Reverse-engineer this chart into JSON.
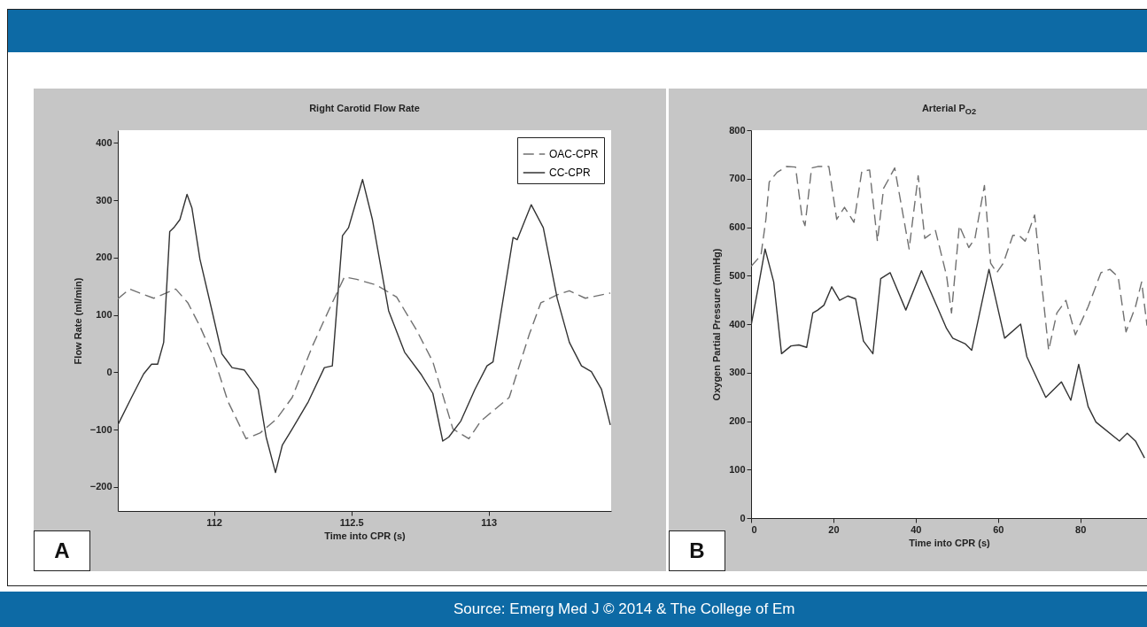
{
  "chart_data": [
    {
      "type": "line",
      "title": "Right Carotid Flow Rate",
      "xlabel": "Time into CPR (s)",
      "ylabel": "Flow Rate (ml/min)",
      "xlim": [
        111.65,
        113.446
      ],
      "ylim": [
        -242,
        422
      ],
      "xticks": [
        112,
        112.5,
        113
      ],
      "yticks": [
        -200,
        -100,
        0,
        100,
        200,
        300,
        400
      ],
      "legend": "top right",
      "grid": false,
      "annotations": [
        "A"
      ],
      "series": [
        {
          "name": "OAC-CPR",
          "color": "#707070",
          "line_style": "dashed",
          "x": [
            111.65,
            111.693,
            111.73,
            111.781,
            111.861,
            111.905,
            111.949,
            112.0,
            112.051,
            112.117,
            112.168,
            112.227,
            112.285,
            112.358,
            112.417,
            112.475,
            112.519,
            112.592,
            112.665,
            112.738,
            112.797,
            112.87,
            112.928,
            112.972,
            113.075,
            113.148,
            113.19,
            113.25,
            113.294,
            113.352,
            113.443
          ],
          "values": [
            128,
            145,
            138,
            129,
            145,
            121,
            80,
            25,
            -51,
            -116,
            -106,
            -82,
            -44,
            45,
            107,
            166,
            162,
            152,
            131,
            73,
            18,
            -99,
            -116,
            -85,
            -44,
            66,
            121,
            135,
            142,
            129,
            138
          ]
        },
        {
          "name": "CC-CPR",
          "color": "#333333",
          "line_style": "solid",
          "x": [
            111.65,
            111.7,
            111.744,
            111.773,
            111.795,
            111.817,
            111.839,
            111.854,
            111.876,
            111.902,
            111.92,
            111.949,
            111.993,
            112.029,
            112.066,
            112.11,
            112.161,
            112.19,
            112.224,
            112.249,
            112.285,
            112.344,
            112.402,
            112.431,
            112.468,
            112.49,
            112.541,
            112.577,
            112.636,
            112.694,
            112.753,
            112.797,
            112.833,
            112.855,
            112.899,
            112.95,
            112.994,
            113.016,
            113.089,
            113.104,
            113.155,
            113.199,
            113.25,
            113.294,
            113.338,
            113.374,
            113.411,
            113.443
          ],
          "values": [
            -92,
            -44,
            -3,
            14,
            14,
            52,
            245,
            252,
            266,
            310,
            286,
            197,
            107,
            32,
            8,
            4,
            -30,
            -113,
            -175,
            -127,
            -99,
            -51,
            8,
            11,
            238,
            252,
            336,
            266,
            107,
            35,
            -3,
            -37,
            -120,
            -113,
            -85,
            -30,
            11,
            18,
            235,
            231,
            292,
            252,
            128,
            52,
            11,
            1,
            -30,
            -92
          ]
        }
      ]
    },
    {
      "type": "line",
      "title": "Arterial P$_{O2}$",
      "xlabel": "Time into CPR (s)",
      "ylabel": "Oxygen Partial Pressure (mmHg)",
      "xlim": [
        0,
        96.2
      ],
      "ylim": [
        0,
        800
      ],
      "xticks": [
        0,
        20,
        40,
        60,
        80
      ],
      "yticks": [
        0,
        100,
        200,
        300,
        400,
        500,
        600,
        700,
        800
      ],
      "grid": false,
      "annotations": [
        "B",
        "Source: Emerg Med J © 2014 & The College of Em"
      ],
      "series": [
        {
          "color": "#707070",
          "line_style": "dashed",
          "x": [
            0,
            2.4,
            3.6,
            4.4,
            6.3,
            8.6,
            10.8,
            12.4,
            13.1,
            14.7,
            16.2,
            18.9,
            20.8,
            22.7,
            25,
            26.9,
            28.8,
            30.7,
            32.2,
            34.9,
            38.4,
            40.6,
            42.2,
            44.8,
            47.5,
            48.7,
            50.6,
            52.9,
            54.4,
            56.7,
            58.2,
            59.7,
            61.3,
            63.6,
            65.1,
            66.6,
            68.9,
            71.2,
            72.3,
            74.3,
            76.5,
            78.8,
            81.9,
            85,
            87.2,
            89.2,
            91.1,
            93.4,
            94.9,
            96.2
          ],
          "values": [
            519,
            542,
            616,
            693,
            713,
            725,
            724,
            619,
            603,
            722,
            725,
            725,
            616,
            641,
            610,
            715,
            718,
            571,
            680,
            722,
            555,
            706,
            577,
            593,
            500,
            423,
            603,
            558,
            577,
            686,
            526,
            506,
            526,
            583,
            583,
            571,
            625,
            436,
            346,
            423,
            449,
            378,
            436,
            506,
            513,
            497,
            384,
            436,
            487,
            397
          ]
        },
        {
          "color": "#333333",
          "line_style": "solid",
          "x": [
            0,
            1.7,
            3.4,
            5.5,
            7.4,
            9.7,
            11.6,
            13.5,
            15,
            16.2,
            17.7,
            19.6,
            21.5,
            23.5,
            25.4,
            27.3,
            29.6,
            31.5,
            33.8,
            37.6,
            41.4,
            45.2,
            47.5,
            49,
            52.1,
            53.6,
            57.8,
            61.6,
            65.5,
            67,
            71.6,
            75.4,
            77.7,
            79.6,
            81.9,
            83.8,
            89.5,
            91.4,
            93.4,
            95.6
          ],
          "values": [
            397,
            474,
            555,
            487,
            339,
            355,
            357,
            352,
            423,
            429,
            439,
            477,
            449,
            458,
            452,
            365,
            339,
            494,
            506,
            429,
            510,
            436,
            391,
            371,
            359,
            346,
            513,
            371,
            400,
            333,
            249,
            281,
            243,
            317,
            230,
            198,
            159,
            175,
            159,
            124
          ]
        }
      ]
    }
  ]
}
